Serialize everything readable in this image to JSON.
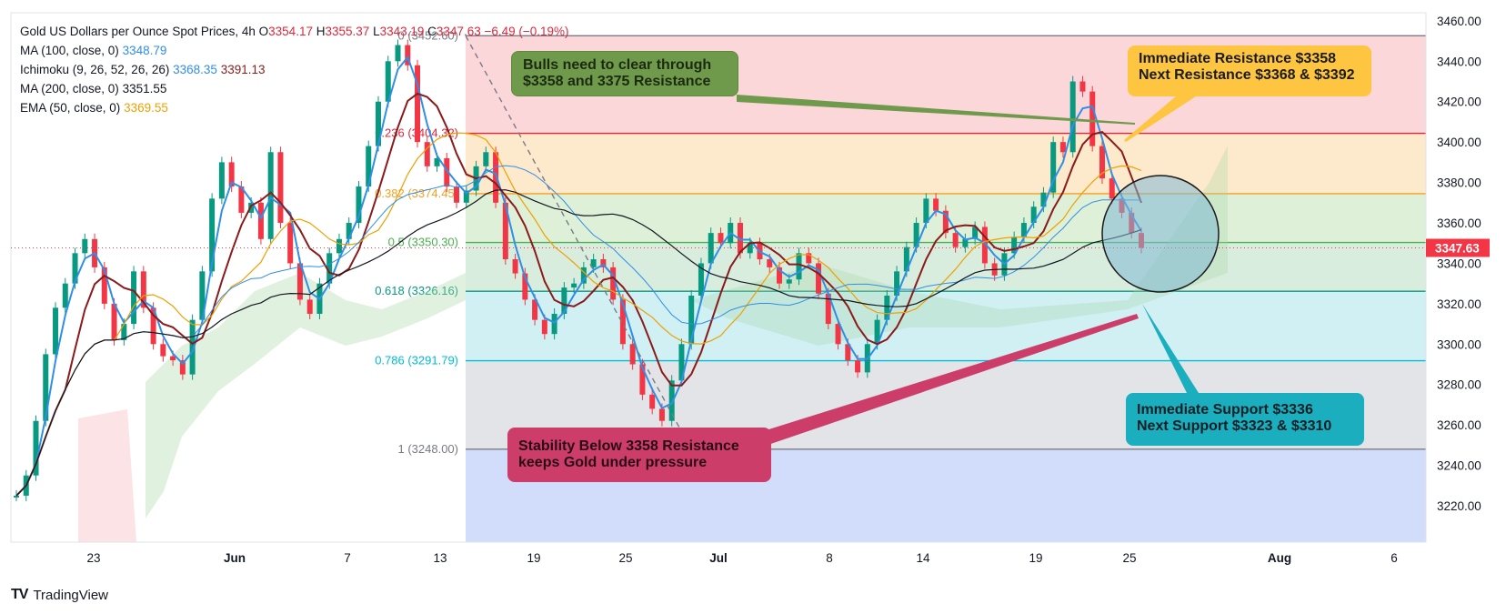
{
  "symbol": {
    "title": "Gold US Dollars per Ounce Spot Prices, 4h",
    "o_label": "O",
    "o": "3354.17",
    "h_label": "H",
    "h": "3355.37",
    "l_label": "L",
    "l": "3343.19",
    "c_label": "C",
    "c": "3347.63",
    "change": "−6.49 (−0.19%)"
  },
  "indicators": [
    {
      "label": "MA (100, close, 0)",
      "value": "3348.79",
      "color": "#2f8fe6"
    },
    {
      "label": "Ichimoku (9, 26, 52, 26, 26)",
      "value": "3368.35",
      "value2": "3391.13",
      "color": "#2f8fe6",
      "color2": "#8b1a1a"
    },
    {
      "label": "MA (200, close, 0)",
      "value": "3351.55",
      "color": "#131722"
    },
    {
      "label": "EMA (50, close, 0)",
      "value": "3369.55",
      "color": "#f0a000"
    }
  ],
  "chart_data": {
    "type": "line",
    "price_axis": {
      "min": 3202,
      "max": 3464,
      "ticks": [
        3220,
        3240,
        3260,
        3280,
        3300,
        3320,
        3340,
        3360,
        3380,
        3400,
        3420,
        3440,
        3460
      ]
    },
    "current_price": "3347.63",
    "x_ticks": [
      "23",
      "Jun",
      "7",
      "13",
      "19",
      "25",
      "Jul",
      "8",
      "14",
      "19",
      "25",
      "Aug",
      "6"
    ],
    "fibonacci": [
      {
        "label": "0 (3452.60)",
        "value": 3452.6,
        "color": "#787b86"
      },
      {
        "label": "0.236 (3404.32)",
        "value": 3404.32,
        "color": "#e0263a"
      },
      {
        "label": "0.382 (3374.45)",
        "value": 3374.45,
        "color": "#f5a020"
      },
      {
        "label": "0.5 (3350.30)",
        "value": 3350.3,
        "color": "#4caf50"
      },
      {
        "label": "0.618 (3326.16)",
        "value": 3326.16,
        "color": "#089981"
      },
      {
        "label": "0.786 (3291.79)",
        "value": 3291.79,
        "color": "#00bcd4"
      },
      {
        "label": "1 (3248.00)",
        "value": 3248.0,
        "color": "#787b86"
      }
    ],
    "price_series": [
      3225,
      3235,
      3262,
      3295,
      3318,
      3330,
      3345,
      3352,
      3338,
      3320,
      3302,
      3310,
      3336,
      3318,
      3300,
      3294,
      3292,
      3285,
      3312,
      3336,
      3372,
      3390,
      3378,
      3365,
      3370,
      3352,
      3395,
      3360,
      3340,
      3322,
      3315,
      3330,
      3345,
      3352,
      3360,
      3378,
      3398,
      3420,
      3440,
      3448,
      3438,
      3400,
      3388,
      3392,
      3378,
      3370,
      3376,
      3388,
      3395,
      3370,
      3342,
      3335,
      3322,
      3312,
      3305,
      3315,
      3328,
      3330,
      3338,
      3342,
      3338,
      3322,
      3300,
      3290,
      3275,
      3268,
      3262,
      3282,
      3300,
      3324,
      3340,
      3355,
      3350,
      3360,
      3345,
      3350,
      3342,
      3338,
      3330,
      3332,
      3345,
      3340,
      3325,
      3310,
      3300,
      3292,
      3286,
      3300,
      3312,
      3324,
      3336,
      3348,
      3360,
      3372,
      3366,
      3355,
      3348,
      3352,
      3358,
      3340,
      3334,
      3345,
      3353,
      3360,
      3368,
      3375,
      3400,
      3395,
      3430,
      3425,
      3398,
      3382,
      3372,
      3365,
      3355,
      3347.63
    ]
  },
  "annotations": {
    "bulls": "Bulls need to clear through\n$3358 and 3375 Resistance",
    "resistance_1": "Immediate Resistance $3358",
    "resistance_2": "Next Resistance $3368 & $3392",
    "support_1": "Immediate Support $3336",
    "support_2": "Next Support $3323 & $3310",
    "stability_1": "Stability Below 3358 Resistance",
    "stability_2": "keeps Gold under pressure"
  },
  "brand": "TradingView"
}
